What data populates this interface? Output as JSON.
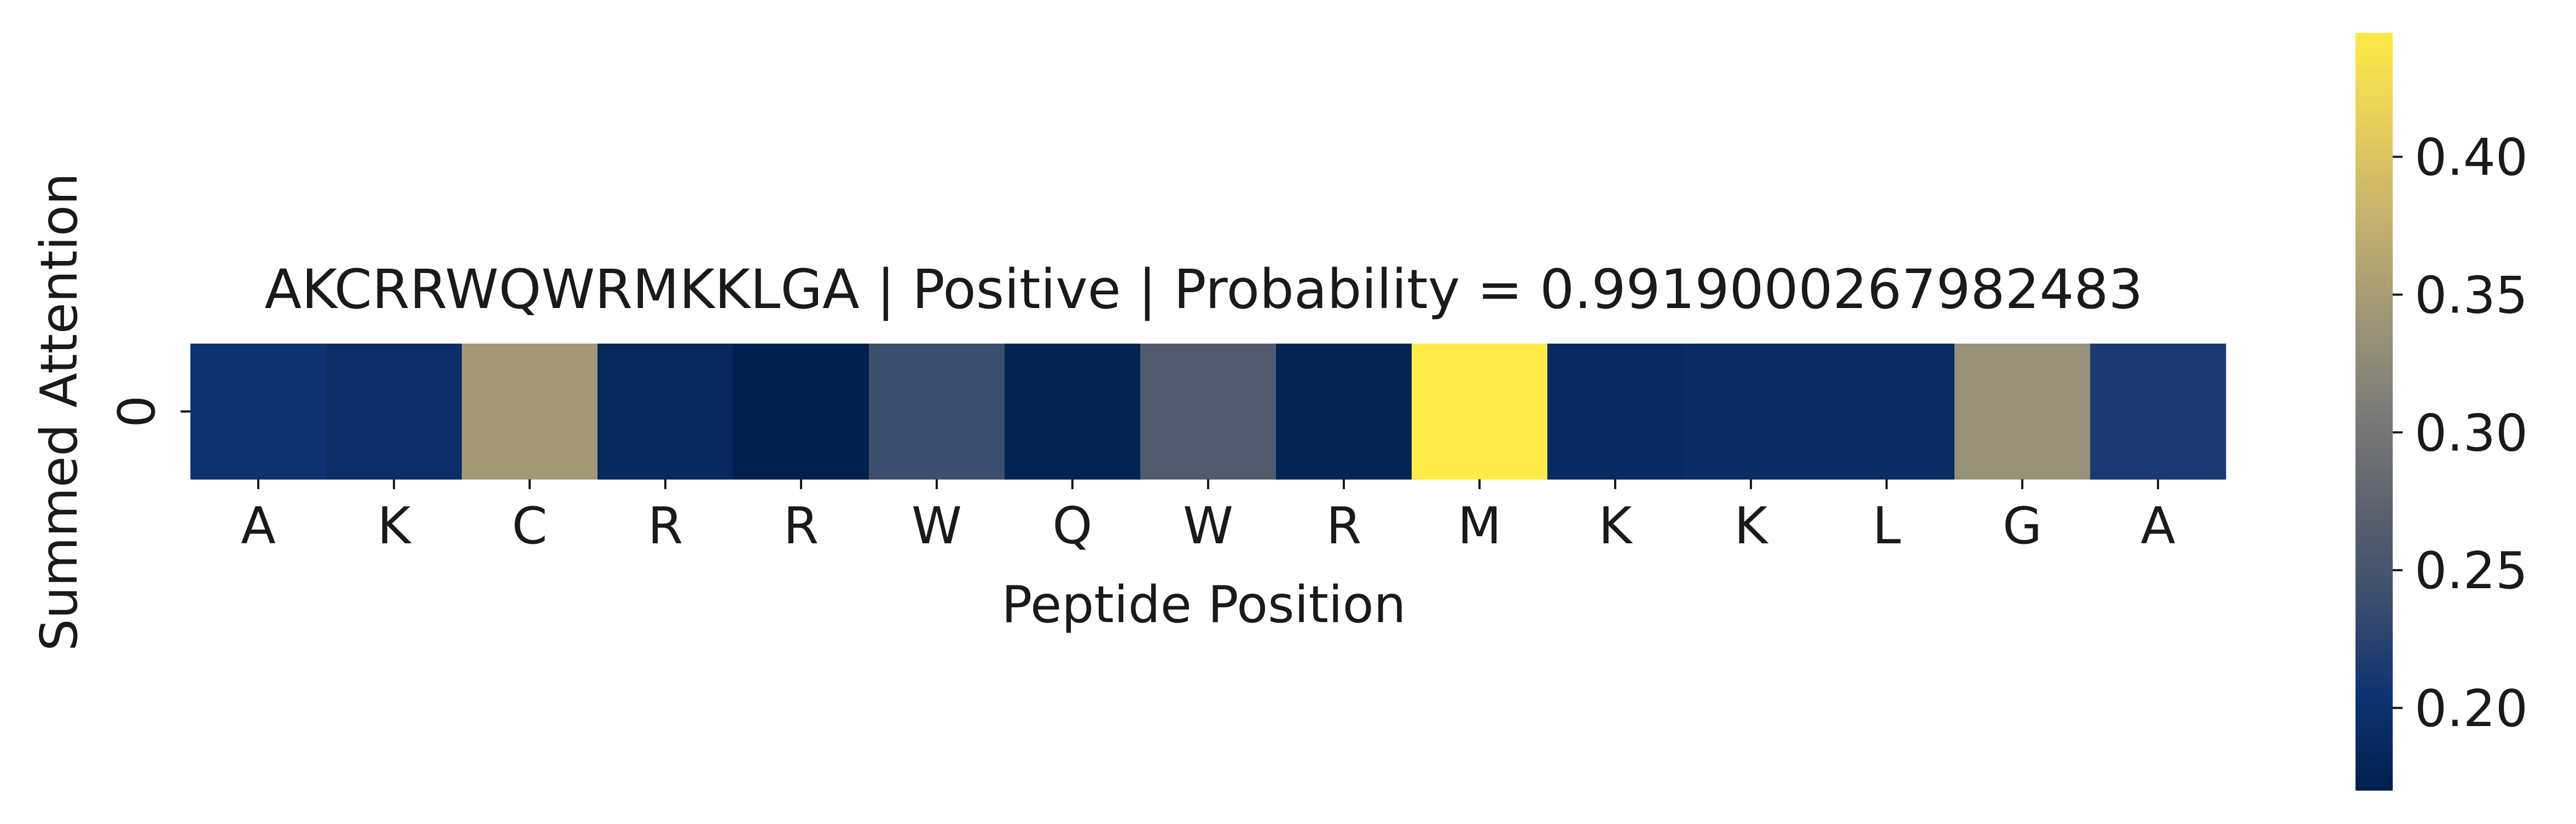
{
  "chart_data": {
    "type": "heatmap",
    "title": "AKCRRWQWRMKKLGA | Positive | Probability = 0.9919000267982483",
    "xlabel": "Peptide Position",
    "ylabel": "Summed Attention",
    "x_tick_labels": [
      "A",
      "K",
      "C",
      "R",
      "R",
      "W",
      "Q",
      "W",
      "R",
      "M",
      "K",
      "K",
      "L",
      "G",
      "A"
    ],
    "y_tick_labels": [
      "0"
    ],
    "values": [
      [
        0.205,
        0.196,
        0.345,
        0.184,
        0.17,
        0.24,
        0.176,
        0.262,
        0.177,
        0.445,
        0.188,
        0.191,
        0.191,
        0.335,
        0.214
      ]
    ],
    "colormap": "cividis",
    "colorbar": {
      "vmin": 0.17,
      "vmax": 0.445,
      "ticks": [
        0.2,
        0.25,
        0.3,
        0.35,
        0.4
      ],
      "tick_labels": [
        "0.20",
        "0.25",
        "0.30",
        "0.35",
        "0.40"
      ]
    }
  }
}
